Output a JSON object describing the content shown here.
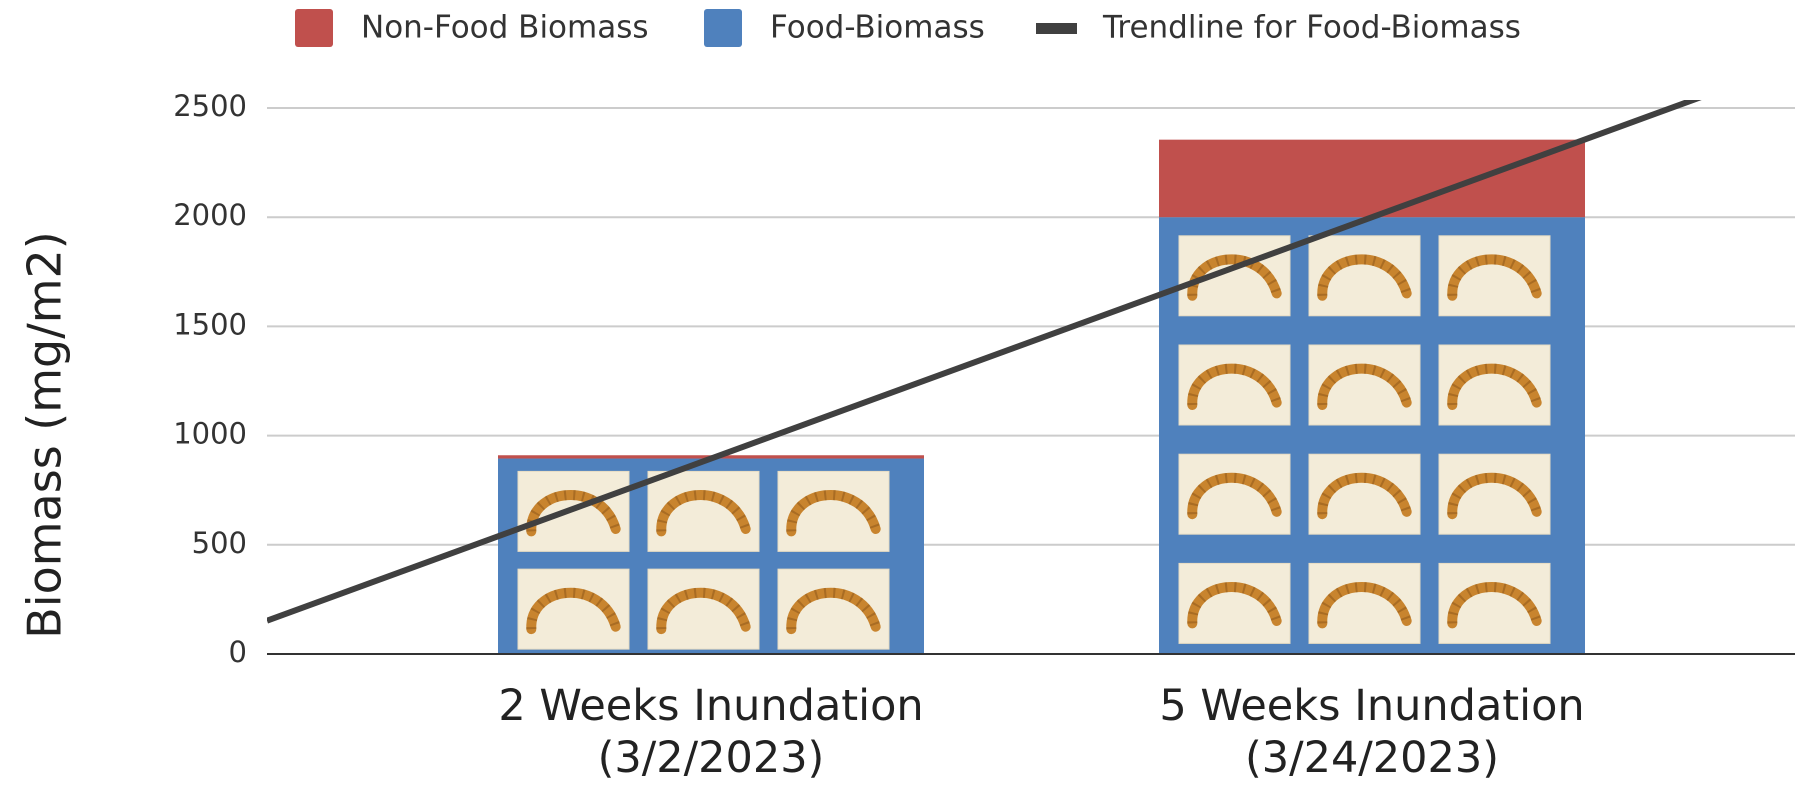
{
  "chart_data": {
    "type": "stacked_bar",
    "y_axis_label": "Biomass (mg/m2)",
    "categories": [
      "2 Weeks Inundation (3/2/2023)",
      "5 Weeks Inundation (3/24/2023)"
    ],
    "series": [
      {
        "name": "Non-Food Biomass",
        "color": "#c0504d",
        "values": [
          15,
          355
        ]
      },
      {
        "name": "Food-Biomass",
        "color": "#4f81bd",
        "values": [
          895,
          2000
        ]
      }
    ],
    "trendline": {
      "name": "Trendline for Food-Biomass",
      "color": "#404040"
    },
    "ylim": [
      0,
      2500
    ],
    "yticks": [
      0,
      500,
      1000,
      1500,
      2000,
      2500
    ],
    "grid": true,
    "legend": "top"
  }
}
